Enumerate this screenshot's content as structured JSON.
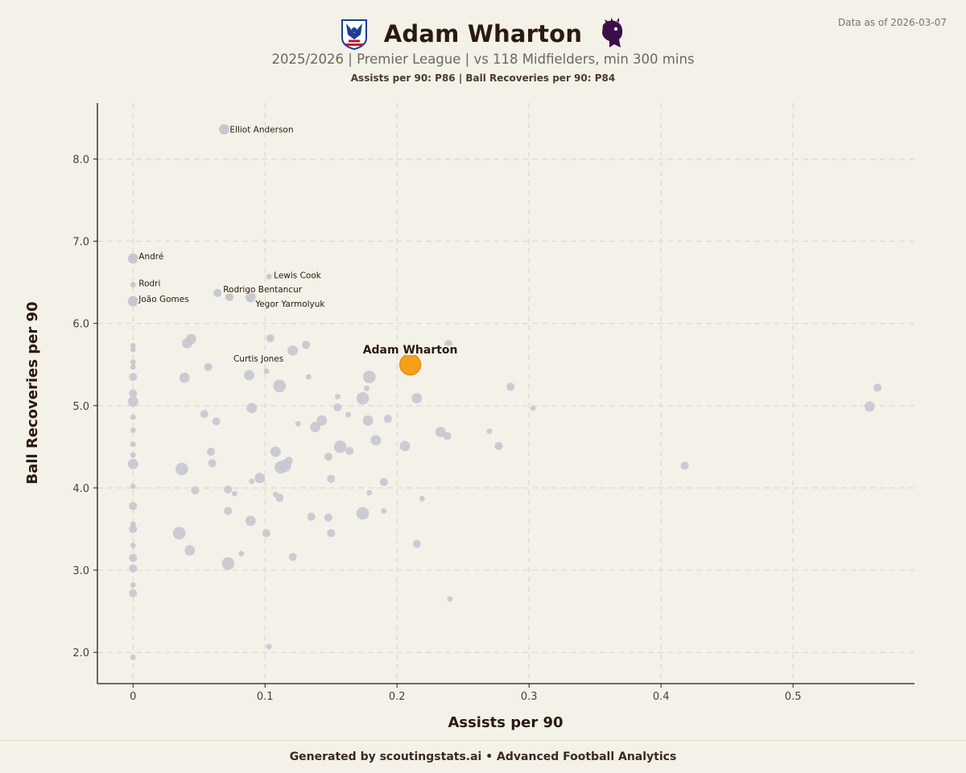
{
  "header": {
    "title": "Adam Wharton",
    "subtitle": "2025/2026 | Premier League | vs 118 Midfielders, min 300 mins",
    "percentiles": "Assists per 90: P86  |  Ball Recoveries per 90: P84",
    "data_date": "Data as of 2026-03-07",
    "club_badge_icon": "crystal-palace-eagle-icon",
    "league_badge_icon": "premier-league-lion-icon"
  },
  "footer": {
    "text": "Generated by scoutingstats.ai • Advanced Football Analytics"
  },
  "colors": {
    "background": "#f4f1e8",
    "highlight": "#f5a01a",
    "points": "#c5c8d0",
    "grid": "#d9d4c9",
    "text": "#2a1a10"
  },
  "chart_data": {
    "type": "scatter",
    "title": "Adam Wharton",
    "xlabel": "Assists per 90",
    "ylabel": "Ball Recoveries per 90",
    "xlim": [
      -0.027,
      0.592
    ],
    "ylim": [
      1.62,
      8.68
    ],
    "xticks": [
      0,
      0.1,
      0.2,
      0.3,
      0.4,
      0.5
    ],
    "xtick_labels": [
      "0",
      "0.1",
      "0.2",
      "0.3",
      "0.4",
      "0.5"
    ],
    "yticks": [
      2,
      3,
      4,
      5,
      6,
      7,
      8
    ],
    "ytick_labels": [
      "2.0",
      "3.0",
      "4.0",
      "5.0",
      "6.0",
      "7.0",
      "8.0"
    ],
    "grid": true,
    "highlight": {
      "name": "Adam Wharton",
      "x": 0.21,
      "y": 5.5
    },
    "labeled_points": [
      {
        "name": "Elliot Anderson",
        "x": 0.069,
        "y": 8.36,
        "s": 2
      },
      {
        "name": "André",
        "x": 0.0,
        "y": 6.79,
        "s": 2
      },
      {
        "name": "Lewis Cook",
        "x": 0.103,
        "y": 6.57,
        "s": 0
      },
      {
        "name": "Rodri",
        "x": 0.0,
        "y": 6.47,
        "s": 0
      },
      {
        "name": "Rodrigo Bentancur",
        "x": 0.064,
        "y": 6.37,
        "s": 1
      },
      {
        "name": "João Gomes",
        "x": 0.0,
        "y": 6.27,
        "s": 2
      },
      {
        "name": "Yegor Yarmolyuk",
        "x": 0.089,
        "y": 6.32,
        "s": 2
      },
      {
        "name": "Curtis Jones",
        "x": 0.073,
        "y": 6.32,
        "s": 1
      }
    ],
    "points": [
      [
        0.0,
        5.73,
        0
      ],
      [
        0.0,
        5.68,
        0
      ],
      [
        0.0,
        5.53,
        0
      ],
      [
        0.0,
        5.47,
        0
      ],
      [
        0.0,
        5.35,
        1
      ],
      [
        0.0,
        5.15,
        1
      ],
      [
        0.0,
        5.05,
        2
      ],
      [
        0.0,
        4.86,
        0
      ],
      [
        0.0,
        4.7,
        0
      ],
      [
        0.0,
        4.53,
        0
      ],
      [
        0.0,
        4.4,
        0
      ],
      [
        0.0,
        4.29,
        2
      ],
      [
        0.0,
        4.02,
        0
      ],
      [
        0.0,
        3.78,
        1
      ],
      [
        0.0,
        3.56,
        0
      ],
      [
        0.0,
        3.5,
        1
      ],
      [
        0.0,
        3.3,
        0
      ],
      [
        0.0,
        3.15,
        1
      ],
      [
        0.0,
        3.02,
        1
      ],
      [
        0.0,
        2.82,
        0
      ],
      [
        0.0,
        2.72,
        1
      ],
      [
        0.0,
        1.94,
        0
      ],
      [
        0.039,
        5.34,
        2
      ],
      [
        0.041,
        5.76,
        2
      ],
      [
        0.044,
        5.81,
        2
      ],
      [
        0.057,
        5.47,
        1
      ],
      [
        0.054,
        4.9,
        1
      ],
      [
        0.063,
        4.81,
        1
      ],
      [
        0.059,
        4.44,
        1
      ],
      [
        0.06,
        4.3,
        1
      ],
      [
        0.037,
        4.23,
        3
      ],
      [
        0.047,
        3.97,
        1
      ],
      [
        0.072,
        3.98,
        1
      ],
      [
        0.077,
        3.93,
        0
      ],
      [
        0.072,
        3.72,
        1
      ],
      [
        0.035,
        3.45,
        3
      ],
      [
        0.043,
        3.24,
        2
      ],
      [
        0.082,
        3.2,
        0
      ],
      [
        0.072,
        3.08,
        3
      ],
      [
        0.088,
        5.37,
        2
      ],
      [
        0.09,
        4.97,
        2
      ],
      [
        0.101,
        5.42,
        0
      ],
      [
        0.104,
        5.82,
        1
      ],
      [
        0.111,
        5.24,
        3
      ],
      [
        0.121,
        5.67,
        2
      ],
      [
        0.131,
        5.74,
        1
      ],
      [
        0.133,
        5.35,
        0
      ],
      [
        0.108,
        4.44,
        2
      ],
      [
        0.112,
        4.25,
        3
      ],
      [
        0.115,
        4.27,
        3
      ],
      [
        0.118,
        4.33,
        1
      ],
      [
        0.096,
        4.12,
        2
      ],
      [
        0.09,
        4.08,
        0
      ],
      [
        0.108,
        3.92,
        0
      ],
      [
        0.111,
        3.88,
        1
      ],
      [
        0.089,
        3.6,
        2
      ],
      [
        0.101,
        3.45,
        1
      ],
      [
        0.121,
        3.16,
        1
      ],
      [
        0.103,
        2.07,
        0
      ],
      [
        0.125,
        4.78,
        0
      ],
      [
        0.138,
        4.74,
        2
      ],
      [
        0.143,
        4.82,
        2
      ],
      [
        0.148,
        4.38,
        1
      ],
      [
        0.155,
        5.11,
        0
      ],
      [
        0.155,
        4.98,
        1
      ],
      [
        0.163,
        4.89,
        0
      ],
      [
        0.157,
        4.5,
        3
      ],
      [
        0.164,
        4.45,
        1
      ],
      [
        0.15,
        4.11,
        1
      ],
      [
        0.135,
        3.65,
        1
      ],
      [
        0.148,
        3.64,
        1
      ],
      [
        0.15,
        3.45,
        1
      ],
      [
        0.174,
        5.09,
        3
      ],
      [
        0.177,
        5.21,
        0
      ],
      [
        0.179,
        5.35,
        3
      ],
      [
        0.178,
        4.82,
        2
      ],
      [
        0.184,
        4.58,
        2
      ],
      [
        0.193,
        4.84,
        1
      ],
      [
        0.19,
        4.07,
        1
      ],
      [
        0.179,
        3.94,
        0
      ],
      [
        0.174,
        3.69,
        3
      ],
      [
        0.19,
        3.72,
        0
      ],
      [
        0.206,
        4.51,
        2
      ],
      [
        0.215,
        5.09,
        2
      ],
      [
        0.219,
        3.87,
        0
      ],
      [
        0.215,
        3.32,
        1
      ],
      [
        0.24,
        2.65,
        0
      ],
      [
        0.239,
        5.75,
        1
      ],
      [
        0.233,
        4.68,
        2
      ],
      [
        0.238,
        4.63,
        1
      ],
      [
        0.27,
        4.69,
        0
      ],
      [
        0.277,
        4.51,
        1
      ],
      [
        0.286,
        5.23,
        1
      ],
      [
        0.303,
        4.97,
        0
      ],
      [
        0.418,
        4.27,
        1
      ],
      [
        0.558,
        4.99,
        2
      ],
      [
        0.564,
        5.22,
        1
      ]
    ]
  }
}
